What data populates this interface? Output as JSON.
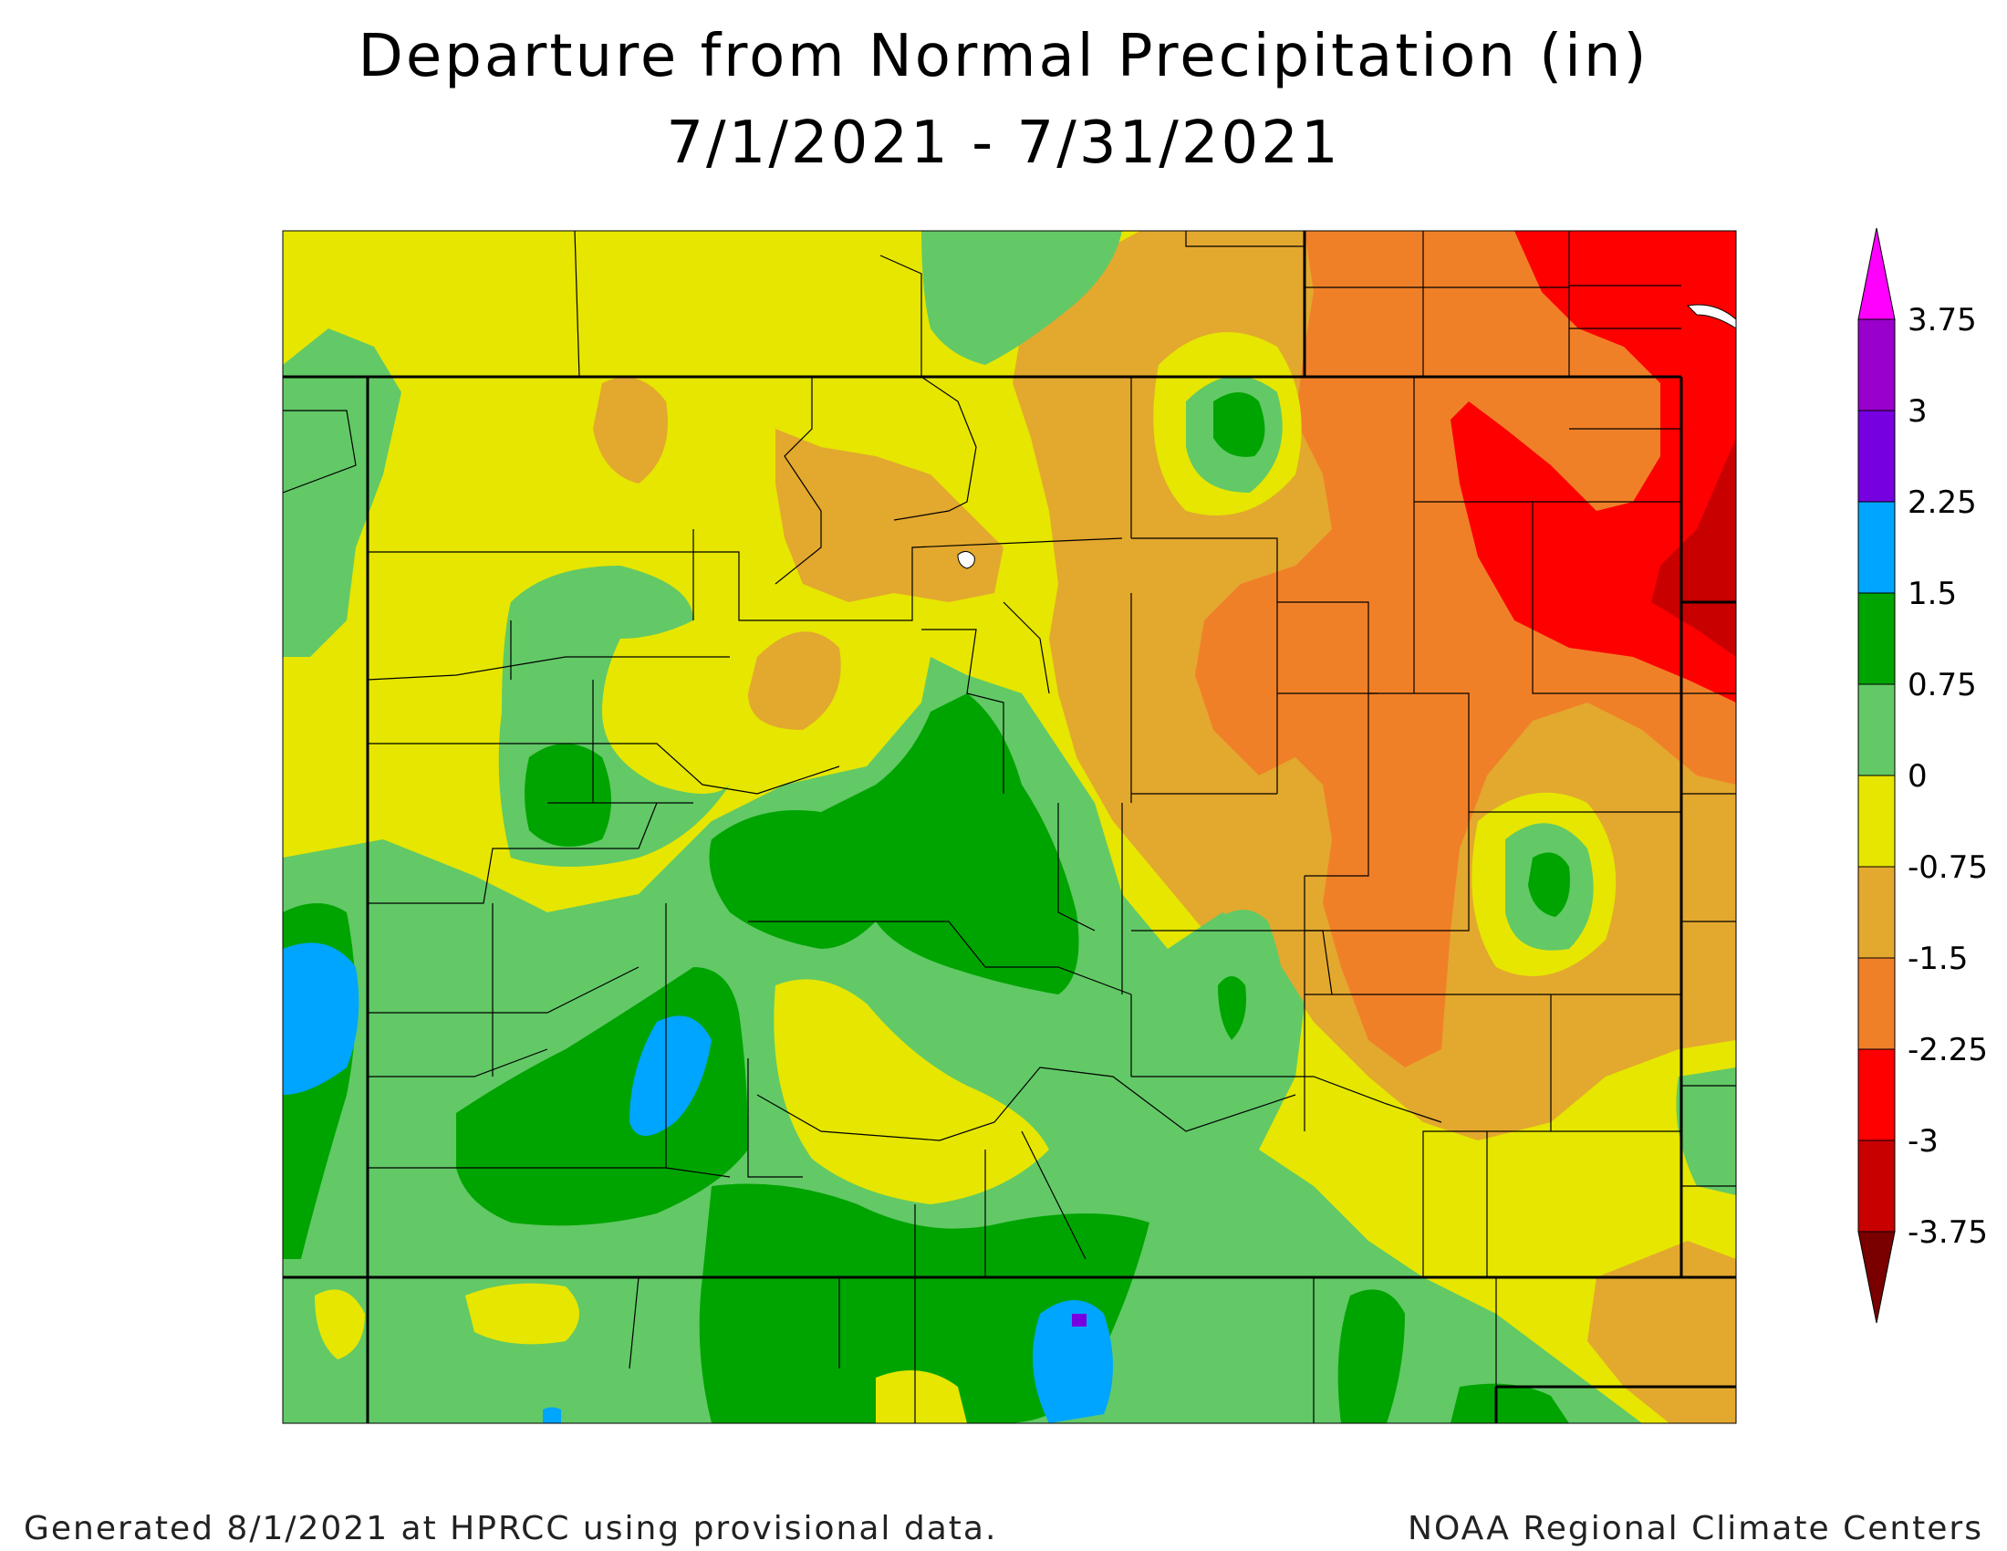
{
  "title_line1": "Departure from Normal Precipitation (in)",
  "title_line2": "7/1/2021 - 7/31/2021",
  "footer_left": "Generated 8/1/2021 at HPRCC using provisional data.",
  "footer_right": "NOAA Regional Climate Centers",
  "legend": {
    "top_cap_color": "#ff00ff",
    "bottom_cap_color": "#7a0000",
    "bins": [
      {
        "upper": "3.75",
        "color": "#9900cc"
      },
      {
        "upper": "3",
        "color": "#7700e0"
      },
      {
        "upper": "2.25",
        "color": "#00a5ff"
      },
      {
        "upper": "1.5",
        "color": "#00a400"
      },
      {
        "upper": "0.75",
        "color": "#62c966"
      },
      {
        "upper": "0",
        "color": "#e6e600"
      },
      {
        "upper": "-0.75",
        "color": "#e3a82e"
      },
      {
        "upper": "-1.5",
        "color": "#f08028"
      },
      {
        "upper": "-2.25",
        "color": "#ff0000"
      },
      {
        "upper": "-3",
        "color": "#c80000"
      }
    ],
    "bottom_label": "-3.75"
  }
}
